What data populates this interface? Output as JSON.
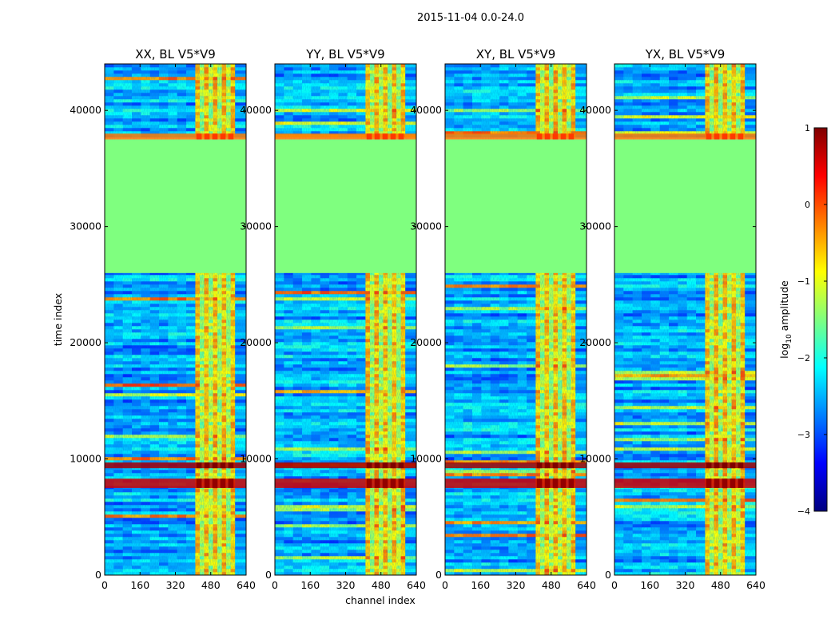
{
  "figure_title": "2015-11-04 0.0-24.0",
  "colors": {
    "jet_stops": [
      "#00007f",
      "#0000ff",
      "#007fff",
      "#00ffff",
      "#7fff7f",
      "#ffff00",
      "#ff7f00",
      "#ff0000",
      "#7f0000"
    ],
    "frame": "#000000",
    "background": "#ffffff"
  },
  "chart_data": {
    "type": "heatmap",
    "title": "2015-11-04 0.0-24.0",
    "xlabel": "channel index",
    "ylabel": "time index",
    "xlim": [
      0,
      640
    ],
    "ylim": [
      0,
      44000
    ],
    "xticks": [
      0,
      160,
      320,
      480,
      640
    ],
    "yticks": [
      0,
      10000,
      20000,
      30000,
      40000
    ],
    "colormap": "jet",
    "colorbar": {
      "label": "log10 amplitude",
      "label_base": "log",
      "label_sub": "10",
      "label_rest": " amplitude",
      "clim": [
        -4,
        1
      ],
      "ticks": [
        1,
        0,
        -1,
        -2,
        -3,
        -4
      ],
      "tick_labels": [
        "1",
        "0",
        "−1",
        "−2",
        "−3",
        "−4"
      ]
    },
    "panels": [
      {
        "title": "XX, BL V5*V9",
        "polarization": "XX"
      },
      {
        "title": "YY, BL V5*V9",
        "polarization": "YY"
      },
      {
        "title": "XY, BL V5*V9",
        "polarization": "XY"
      },
      {
        "title": "YX, BL V5*V9",
        "polarization": "YX"
      }
    ],
    "flagged_block": {
      "time_range": [
        26000,
        37500
      ],
      "value": -1.5
    },
    "rfi_channel_band": [
      410,
      590
    ],
    "strong_rfi_rows": [
      {
        "time_range": [
          9200,
          9700
        ],
        "value": 0.8
      },
      {
        "time_range": [
          7500,
          8300
        ],
        "value": 0.6
      },
      {
        "time_range": [
          37500,
          38000
        ],
        "value": -0.2
      }
    ]
  }
}
